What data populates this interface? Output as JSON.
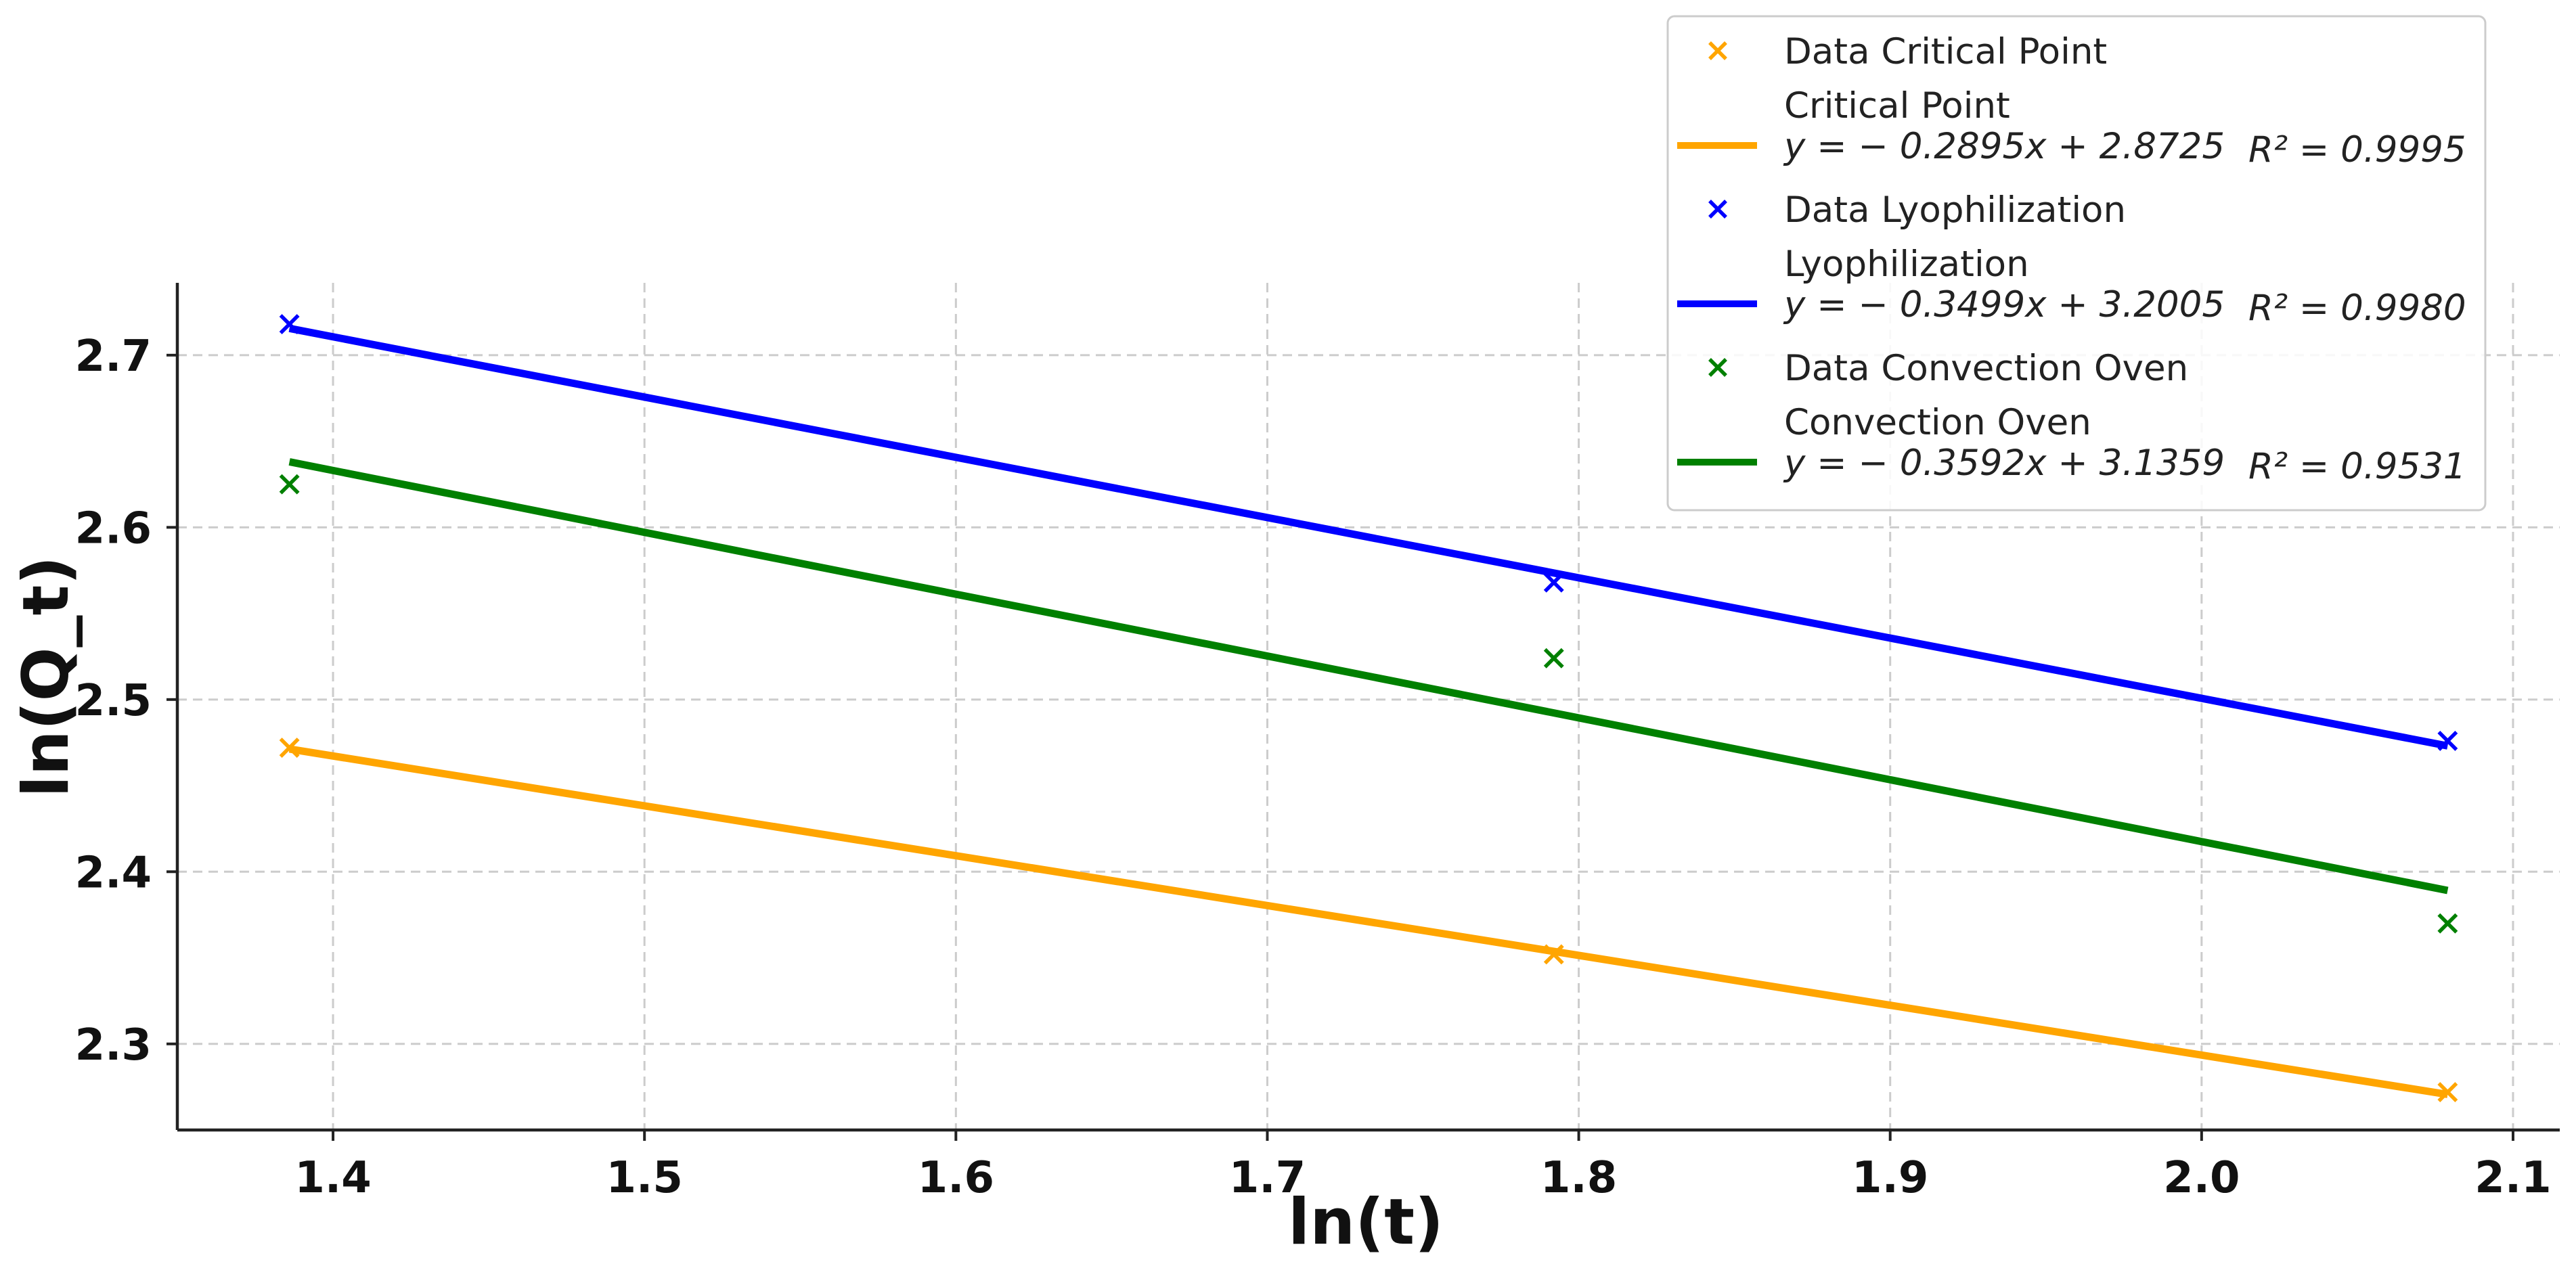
{
  "chart_data": {
    "type": "scatter",
    "title": "",
    "xlabel": "ln(t)",
    "ylabel": "ln(Q_t)",
    "xlim": [
      1.35,
      2.115
    ],
    "ylim": [
      2.25,
      2.742
    ],
    "xticks": [
      1.4,
      1.5,
      1.6,
      1.7,
      1.8,
      1.9,
      2.0,
      2.1
    ],
    "yticks": [
      2.3,
      2.4,
      2.5,
      2.6,
      2.7
    ],
    "xtick_labels": [
      "1.4",
      "1.5",
      "1.6",
      "1.7",
      "1.8",
      "1.9",
      "2.0",
      "2.1"
    ],
    "ytick_labels": [
      "2.3",
      "2.4",
      "2.5",
      "2.6",
      "2.7"
    ],
    "grid": true,
    "legend_position": "top-right",
    "series": [
      {
        "name": "Data Critical Point",
        "fit_name": "Critical Point",
        "equation": "y = − 0.2895x + 2.8725",
        "r2": "R² = 0.9995",
        "slope": -0.2895,
        "intercept": 2.8725,
        "color": "#FFA500",
        "x": [
          1.386,
          1.792,
          2.079
        ],
        "y": [
          2.472,
          2.352,
          2.272
        ]
      },
      {
        "name": "Data Lyophilization",
        "fit_name": "Lyophilization",
        "equation": "y = − 0.3499x + 3.2005",
        "r2": "R² = 0.9980",
        "slope": -0.3499,
        "intercept": 3.2005,
        "color": "#0000FF",
        "x": [
          1.386,
          1.792,
          2.079
        ],
        "y": [
          2.718,
          2.568,
          2.476
        ]
      },
      {
        "name": "Data Convection Oven",
        "fit_name": "Convection Oven",
        "equation": "y = − 0.3592x + 3.1359",
        "r2": "R² = 0.9531",
        "slope": -0.3592,
        "intercept": 3.1359,
        "color": "#008000",
        "x": [
          1.386,
          1.792,
          2.079
        ],
        "y": [
          2.625,
          2.524,
          2.37
        ]
      }
    ]
  }
}
